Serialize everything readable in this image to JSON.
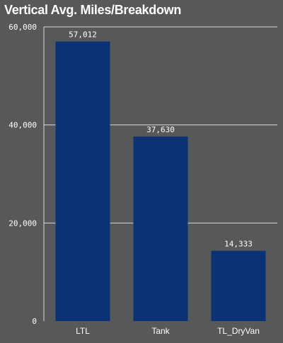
{
  "chart_data": {
    "type": "bar",
    "title": "Vertical Avg. Miles/Breakdown",
    "categories": [
      "LTL",
      "Tank",
      "TL_DryVan"
    ],
    "values": [
      57012,
      37630,
      14333
    ],
    "value_labels": [
      "57,012",
      "37,630",
      "14,333"
    ],
    "ylim": [
      0,
      60000
    ],
    "yticks": [
      0,
      20000,
      40000,
      60000
    ],
    "ytick_labels": [
      "0",
      "20,000",
      "40,000",
      "60,000"
    ],
    "xlabel": "",
    "ylabel": "",
    "grid": true,
    "legend": "none",
    "colors": {
      "bar": "#0b3275",
      "background": "#565859",
      "grid": "#d9d9d9",
      "text": "#ffffff"
    }
  }
}
